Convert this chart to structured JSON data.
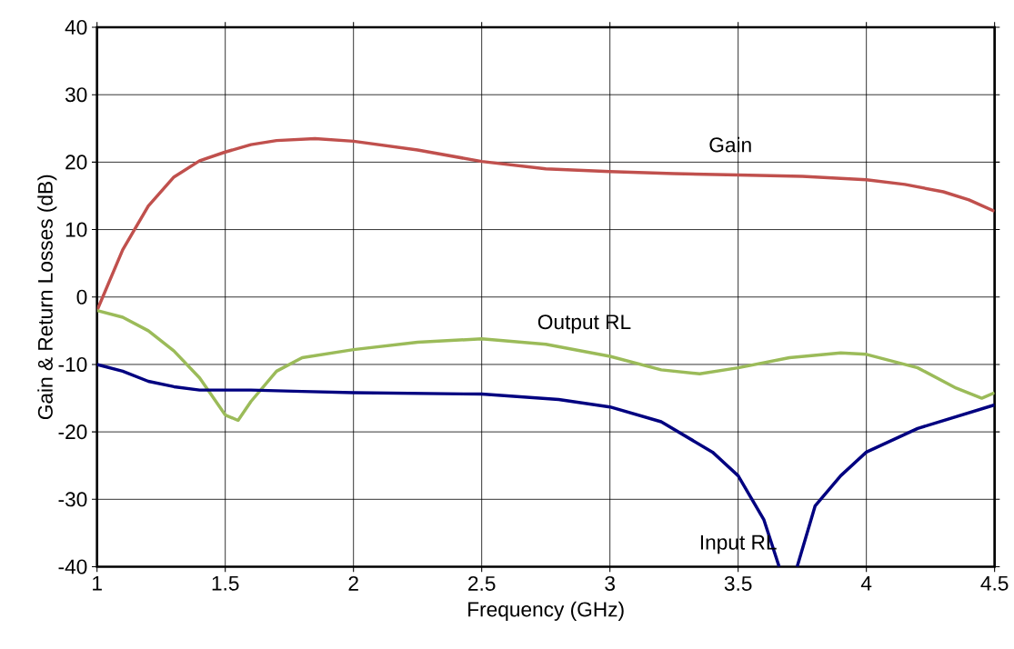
{
  "chart_data": {
    "type": "line",
    "xlabel": "Frequency (GHz)",
    "ylabel": "Gain & Return Losses (dB)",
    "xlim": [
      1,
      4.5
    ],
    "ylim": [
      -40,
      40
    ],
    "xticks": [
      1,
      1.5,
      2,
      2.5,
      3,
      3.5,
      4,
      4.5
    ],
    "yticks": [
      -40,
      -30,
      -20,
      -10,
      0,
      10,
      20,
      30,
      40
    ],
    "grid": true,
    "legend": false,
    "marker": "none",
    "line_style": "solid",
    "series": [
      {
        "name": "Gain",
        "color": "#c0504d",
        "x": [
          1.0,
          1.1,
          1.2,
          1.3,
          1.4,
          1.5,
          1.6,
          1.7,
          1.85,
          2.0,
          2.25,
          2.5,
          2.75,
          3.0,
          3.25,
          3.5,
          3.75,
          4.0,
          4.15,
          4.3,
          4.4,
          4.5
        ],
        "values": [
          -2,
          7,
          13.5,
          17.8,
          20.2,
          21.5,
          22.6,
          23.2,
          23.5,
          23.1,
          21.8,
          20.1,
          19.0,
          18.6,
          18.3,
          18.1,
          17.9,
          17.4,
          16.7,
          15.6,
          14.4,
          12.7
        ]
      },
      {
        "name": "Output RL",
        "color": "#9bbb59",
        "x": [
          1.0,
          1.1,
          1.2,
          1.3,
          1.4,
          1.5,
          1.55,
          1.6,
          1.7,
          1.8,
          2.0,
          2.25,
          2.5,
          2.75,
          3.0,
          3.2,
          3.35,
          3.5,
          3.7,
          3.9,
          4.0,
          4.2,
          4.35,
          4.45,
          4.5
        ],
        "values": [
          -2,
          -3,
          -5,
          -8,
          -12,
          -17.5,
          -18.3,
          -15.5,
          -11,
          -9,
          -7.8,
          -6.7,
          -6.2,
          -7,
          -8.8,
          -10.8,
          -11.4,
          -10.5,
          -9,
          -8.3,
          -8.5,
          -10.5,
          -13.5,
          -15,
          -14.2
        ]
      },
      {
        "name": "Input RL",
        "color": "#000080",
        "x": [
          1.0,
          1.1,
          1.2,
          1.3,
          1.4,
          1.6,
          1.8,
          2.0,
          2.5,
          2.8,
          3.0,
          3.2,
          3.4,
          3.5,
          3.6,
          3.66,
          3.7,
          3.73,
          3.8,
          3.9,
          4.0,
          4.2,
          4.5
        ],
        "values": [
          -10,
          -11,
          -12.5,
          -13.3,
          -13.8,
          -13.8,
          -14,
          -14.2,
          -14.4,
          -15.2,
          -16.3,
          -18.5,
          -23,
          -26.5,
          -33,
          -40,
          null,
          -40,
          -31,
          -26.5,
          -23,
          -19.5,
          -16
        ]
      }
    ]
  }
}
